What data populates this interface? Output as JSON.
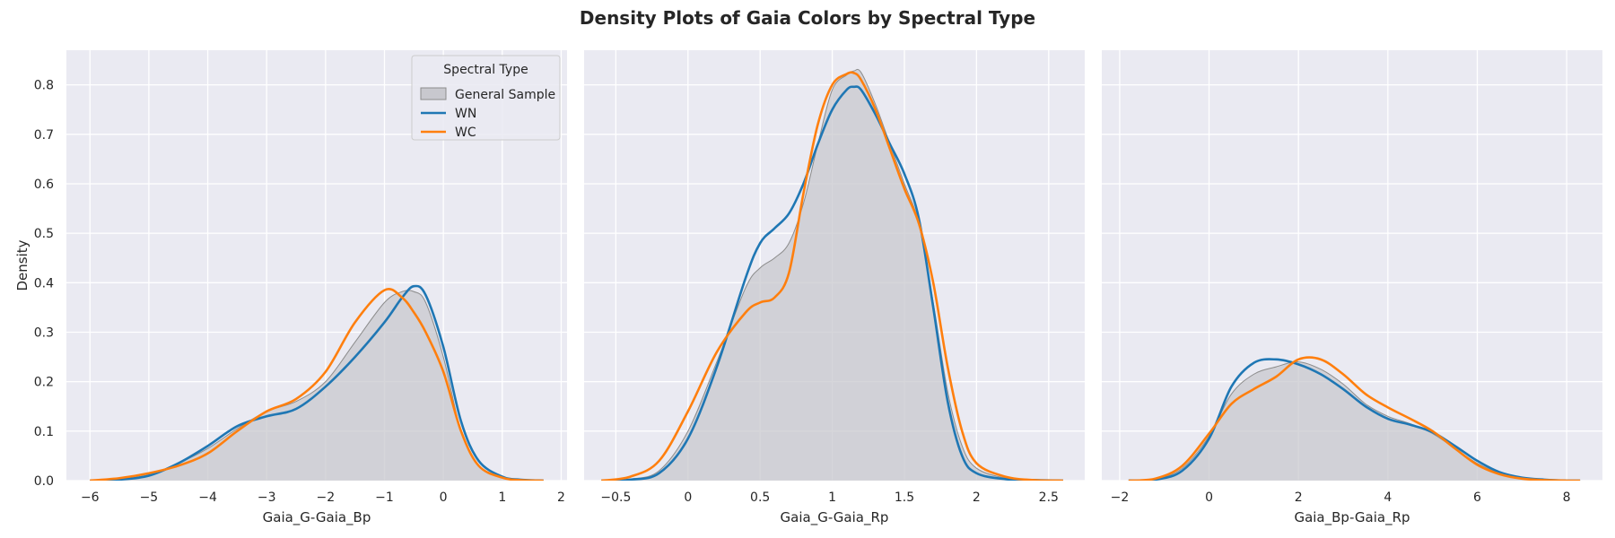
{
  "title": "Density Plots of Gaia Colors by Spectral Type",
  "legend": {
    "title": "Spectral Type",
    "placement": "upper-right of first panel",
    "entries": [
      {
        "label": "General Sample",
        "color": "#b0b0b8",
        "kind": "fill"
      },
      {
        "label": "WN",
        "color": "#1f77b4",
        "kind": "line"
      },
      {
        "label": "WC",
        "color": "#ff7f0e",
        "kind": "line"
      }
    ]
  },
  "colors": {
    "background": "#eaeaf2",
    "grid": "#ffffff",
    "general_fill": "#c8c8ce",
    "general_edge": "#8c8c8c",
    "wn": "#1f77b4",
    "wc": "#ff7f0e"
  },
  "chart_data": [
    {
      "type": "line",
      "title": "",
      "xlabel": "Gaia_G-Gaia_Bp",
      "ylabel": "Density",
      "xlim": [
        -6.4,
        2.1
      ],
      "ylim": [
        0,
        0.87
      ],
      "xticks": [
        -6,
        -5,
        -4,
        -3,
        -2,
        -1,
        0,
        1,
        2
      ],
      "yticks": [
        0.0,
        0.1,
        0.2,
        0.3,
        0.4,
        0.5,
        0.6,
        0.7,
        0.8
      ],
      "ytick_labels_shown": true,
      "grid": true,
      "series": [
        {
          "name": "General Sample",
          "style": "fill",
          "x": [
            -6.0,
            -5.5,
            -5.0,
            -4.5,
            -4.0,
            -3.5,
            -3.0,
            -2.5,
            -2.0,
            -1.5,
            -1.0,
            -0.7,
            -0.5,
            -0.3,
            0.0,
            0.3,
            0.6,
            1.0,
            1.3,
            1.7
          ],
          "y": [
            0.0,
            0.003,
            0.012,
            0.035,
            0.065,
            0.105,
            0.14,
            0.16,
            0.2,
            0.28,
            0.36,
            0.382,
            0.382,
            0.36,
            0.25,
            0.1,
            0.03,
            0.006,
            0.001,
            0.0
          ]
        },
        {
          "name": "WN",
          "style": "line",
          "x": [
            -6.0,
            -5.5,
            -5.0,
            -4.5,
            -4.0,
            -3.5,
            -3.0,
            -2.5,
            -2.0,
            -1.5,
            -1.0,
            -0.7,
            -0.5,
            -0.3,
            0.0,
            0.3,
            0.6,
            1.0,
            1.3,
            1.7
          ],
          "y": [
            0.0,
            0.002,
            0.01,
            0.035,
            0.07,
            0.11,
            0.13,
            0.145,
            0.19,
            0.25,
            0.32,
            0.37,
            0.393,
            0.375,
            0.27,
            0.12,
            0.04,
            0.008,
            0.002,
            0.0
          ]
        },
        {
          "name": "WC",
          "style": "line",
          "x": [
            -6.0,
            -5.5,
            -5.0,
            -4.5,
            -4.0,
            -3.5,
            -3.0,
            -2.5,
            -2.0,
            -1.5,
            -1.0,
            -0.7,
            -0.5,
            -0.3,
            0.0,
            0.3,
            0.6,
            1.0,
            1.3,
            1.7
          ],
          "y": [
            0.0,
            0.005,
            0.015,
            0.03,
            0.055,
            0.1,
            0.14,
            0.165,
            0.22,
            0.32,
            0.385,
            0.37,
            0.34,
            0.3,
            0.22,
            0.1,
            0.03,
            0.006,
            0.001,
            0.0
          ]
        }
      ]
    },
    {
      "type": "line",
      "title": "",
      "xlabel": "Gaia_G-Gaia_Rp",
      "ylabel": "",
      "xlim": [
        -0.72,
        2.75
      ],
      "ylim": [
        0,
        0.87
      ],
      "xticks": [
        -0.5,
        0.0,
        0.5,
        1.0,
        1.5,
        2.0,
        2.5
      ],
      "yticks": [
        0.0,
        0.1,
        0.2,
        0.3,
        0.4,
        0.5,
        0.6,
        0.7,
        0.8
      ],
      "ytick_labels_shown": false,
      "grid": true,
      "series": [
        {
          "name": "General Sample",
          "style": "fill",
          "x": [
            -0.6,
            -0.4,
            -0.2,
            0.0,
            0.2,
            0.4,
            0.5,
            0.6,
            0.7,
            0.8,
            0.9,
            1.0,
            1.1,
            1.15,
            1.2,
            1.3,
            1.4,
            1.5,
            1.6,
            1.7,
            1.8,
            1.9,
            2.0,
            2.2,
            2.4,
            2.6
          ],
          "y": [
            0.0,
            0.003,
            0.02,
            0.1,
            0.24,
            0.39,
            0.43,
            0.45,
            0.48,
            0.56,
            0.68,
            0.79,
            0.82,
            0.828,
            0.825,
            0.76,
            0.68,
            0.6,
            0.52,
            0.36,
            0.18,
            0.07,
            0.025,
            0.005,
            0.001,
            0.0
          ]
        },
        {
          "name": "WN",
          "style": "line",
          "x": [
            -0.6,
            -0.4,
            -0.2,
            0.0,
            0.2,
            0.4,
            0.5,
            0.6,
            0.7,
            0.8,
            0.9,
            1.0,
            1.1,
            1.15,
            1.2,
            1.3,
            1.4,
            1.5,
            1.6,
            1.7,
            1.8,
            1.9,
            2.0,
            2.2,
            2.4,
            2.6
          ],
          "y": [
            0.0,
            0.002,
            0.015,
            0.085,
            0.23,
            0.41,
            0.48,
            0.51,
            0.54,
            0.6,
            0.68,
            0.75,
            0.79,
            0.796,
            0.79,
            0.74,
            0.68,
            0.62,
            0.53,
            0.35,
            0.16,
            0.05,
            0.015,
            0.003,
            0.001,
            0.0
          ]
        },
        {
          "name": "WC",
          "style": "line",
          "x": [
            -0.6,
            -0.4,
            -0.2,
            0.0,
            0.2,
            0.4,
            0.5,
            0.6,
            0.7,
            0.8,
            0.9,
            1.0,
            1.1,
            1.15,
            1.2,
            1.3,
            1.4,
            1.5,
            1.6,
            1.7,
            1.8,
            1.9,
            2.0,
            2.2,
            2.4,
            2.6
          ],
          "y": [
            0.0,
            0.008,
            0.04,
            0.14,
            0.26,
            0.34,
            0.36,
            0.37,
            0.42,
            0.58,
            0.72,
            0.8,
            0.822,
            0.824,
            0.81,
            0.75,
            0.67,
            0.59,
            0.52,
            0.4,
            0.23,
            0.1,
            0.035,
            0.008,
            0.001,
            0.0
          ]
        }
      ]
    },
    {
      "type": "line",
      "title": "",
      "xlabel": "Gaia_Bp-Gaia_Rp",
      "ylabel": "",
      "xlim": [
        -2.4,
        8.8
      ],
      "ylim": [
        0,
        0.87
      ],
      "xticks": [
        -2,
        0,
        2,
        4,
        6,
        8
      ],
      "yticks": [
        0.0,
        0.1,
        0.2,
        0.3,
        0.4,
        0.5,
        0.6,
        0.7,
        0.8
      ],
      "ytick_labels_shown": false,
      "grid": true,
      "series": [
        {
          "name": "General Sample",
          "style": "fill",
          "x": [
            -1.8,
            -1.2,
            -0.6,
            0.0,
            0.5,
            1.0,
            1.5,
            2.0,
            2.5,
            3.0,
            3.5,
            4.0,
            4.5,
            5.0,
            5.5,
            6.0,
            6.5,
            7.0,
            7.5,
            8.0,
            8.3
          ],
          "y": [
            0.0,
            0.003,
            0.025,
            0.09,
            0.175,
            0.215,
            0.23,
            0.24,
            0.225,
            0.195,
            0.155,
            0.13,
            0.115,
            0.095,
            0.065,
            0.035,
            0.015,
            0.005,
            0.002,
            0.0,
            0.0
          ]
        },
        {
          "name": "WN",
          "style": "line",
          "x": [
            -1.8,
            -1.2,
            -0.6,
            0.0,
            0.5,
            1.0,
            1.5,
            2.0,
            2.5,
            3.0,
            3.5,
            4.0,
            4.5,
            5.0,
            5.5,
            6.0,
            6.5,
            7.0,
            7.5,
            8.0,
            8.3
          ],
          "y": [
            0.0,
            0.002,
            0.02,
            0.085,
            0.19,
            0.238,
            0.245,
            0.235,
            0.215,
            0.185,
            0.15,
            0.125,
            0.113,
            0.098,
            0.07,
            0.04,
            0.017,
            0.006,
            0.002,
            0.0,
            0.0
          ]
        },
        {
          "name": "WC",
          "style": "line",
          "x": [
            -1.8,
            -1.2,
            -0.6,
            0.0,
            0.5,
            1.0,
            1.5,
            2.0,
            2.5,
            3.0,
            3.5,
            4.0,
            4.5,
            5.0,
            5.5,
            6.0,
            6.5,
            7.0,
            7.5,
            8.0,
            8.3
          ],
          "y": [
            0.0,
            0.004,
            0.03,
            0.095,
            0.155,
            0.185,
            0.21,
            0.245,
            0.245,
            0.215,
            0.175,
            0.148,
            0.125,
            0.1,
            0.065,
            0.032,
            0.013,
            0.004,
            0.001,
            0.0,
            0.0
          ]
        }
      ]
    }
  ]
}
